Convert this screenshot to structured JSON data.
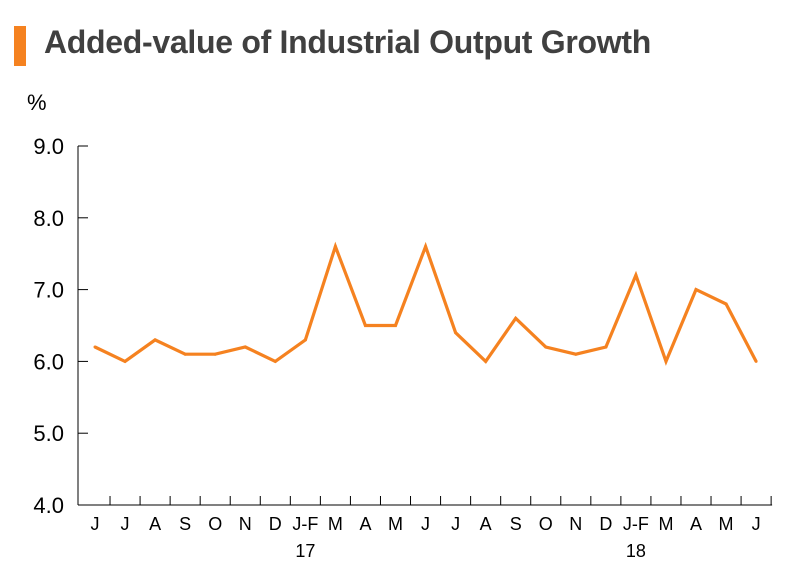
{
  "title": "Added-value of Industrial Output Growth",
  "colors": {
    "accent": "#f58220",
    "line": "#f58220",
    "axis": "#000000"
  },
  "chart_data": {
    "type": "line",
    "title": "Added-value of Industrial Output Growth",
    "ylabel": "%",
    "xlabel": "",
    "ylim": [
      4.0,
      9.0
    ],
    "yticks": [
      "4.0",
      "5.0",
      "6.0",
      "7.0",
      "8.0",
      "9.0"
    ],
    "categories": [
      "J",
      "J",
      "A",
      "S",
      "O",
      "N",
      "D",
      "J-F",
      "M",
      "A",
      "M",
      "J",
      "J",
      "A",
      "S",
      "O",
      "N",
      "D",
      "J-F",
      "M",
      "A",
      "M",
      "J"
    ],
    "year_labels": [
      {
        "index": 7,
        "label": "17"
      },
      {
        "index": 18,
        "label": "18"
      }
    ],
    "series": [
      {
        "values": [
          6.2,
          6.0,
          6.3,
          6.1,
          6.1,
          6.2,
          6.0,
          6.3,
          7.6,
          6.5,
          6.5,
          7.6,
          6.4,
          6.0,
          6.6,
          6.2,
          6.1,
          6.2,
          7.2,
          6.0,
          7.0,
          6.8,
          6.0
        ]
      }
    ],
    "grid": false,
    "legend": "none"
  }
}
